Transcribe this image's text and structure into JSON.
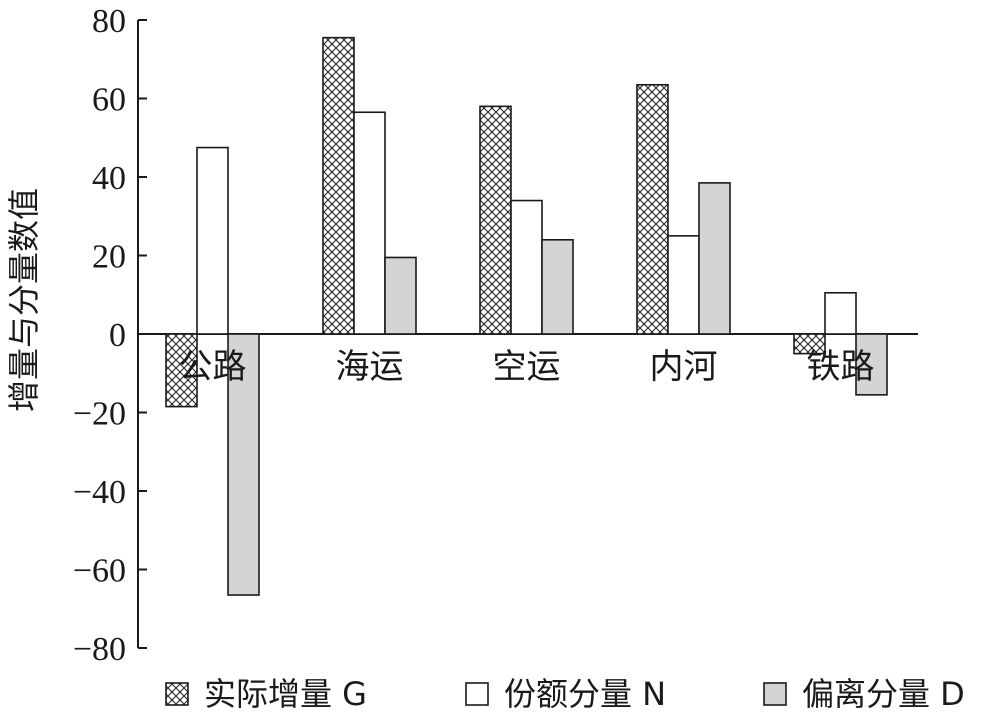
{
  "chart_data": {
    "type": "bar",
    "title": "",
    "xlabel": "",
    "ylabel": "增量与分量数值",
    "categories": [
      "公路",
      "海运",
      "空运",
      "内河",
      "铁路"
    ],
    "series": [
      {
        "name": "实际增量 G",
        "values": [
          -18.5,
          75.5,
          58,
          63.5,
          -5
        ],
        "fill": "pattern"
      },
      {
        "name": "份额分量 N",
        "values": [
          47.5,
          56.5,
          34,
          25,
          10.5
        ],
        "fill": "#ffffff"
      },
      {
        "name": "偏离分量 D",
        "values": [
          -66.5,
          19.5,
          24,
          38.5,
          -15.5
        ],
        "fill": "#d4d4d4"
      }
    ],
    "ylim": [
      -80,
      80
    ],
    "yticks": [
      80,
      60,
      40,
      20,
      0,
      -20,
      -40,
      -60,
      -80
    ],
    "ytick_labels": [
      "80",
      "60",
      "40",
      "20",
      "0",
      "−20",
      "−40",
      "−60",
      "−80"
    ],
    "grid": false,
    "legend_position": "bottom"
  }
}
